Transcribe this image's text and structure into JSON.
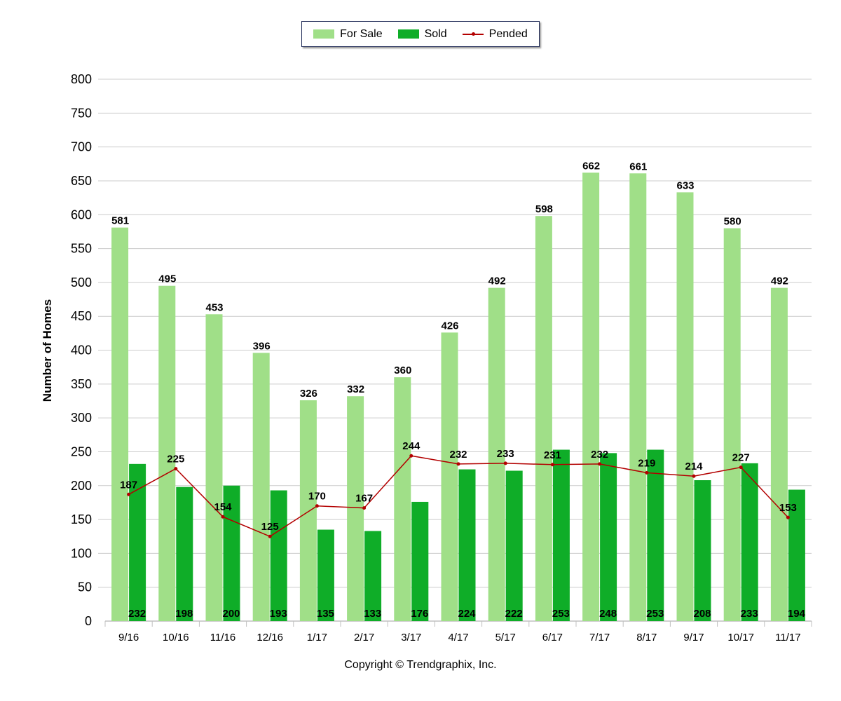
{
  "legend": {
    "for_sale": "For Sale",
    "sold": "Sold",
    "pended": "Pended"
  },
  "copyright": "Copyright © Trendgraphix, Inc.",
  "colors": {
    "for_sale": "#a0df88",
    "sold": "#0fad28",
    "pended": "#b30000",
    "grid": "#cccccc"
  },
  "chart_data": {
    "type": "bar",
    "title": "",
    "xlabel": "",
    "ylabel": "Number of Homes",
    "ylim": [
      0,
      800
    ],
    "ytick_step": 50,
    "grid": true,
    "legend_position": "top-center",
    "categories": [
      "9/16",
      "10/16",
      "11/16",
      "12/16",
      "1/17",
      "2/17",
      "3/17",
      "4/17",
      "5/17",
      "6/17",
      "7/17",
      "8/17",
      "9/17",
      "10/17",
      "11/17"
    ],
    "series": [
      {
        "name": "For Sale",
        "type": "bar",
        "values": [
          581,
          495,
          453,
          396,
          326,
          332,
          360,
          426,
          492,
          598,
          662,
          661,
          633,
          580,
          492
        ]
      },
      {
        "name": "Sold",
        "type": "bar",
        "values": [
          232,
          198,
          200,
          193,
          135,
          133,
          176,
          224,
          222,
          253,
          248,
          253,
          208,
          233,
          194
        ]
      },
      {
        "name": "Pended",
        "type": "line",
        "values": [
          187,
          225,
          154,
          125,
          170,
          167,
          244,
          232,
          233,
          231,
          232,
          219,
          214,
          227,
          153
        ]
      }
    ]
  }
}
